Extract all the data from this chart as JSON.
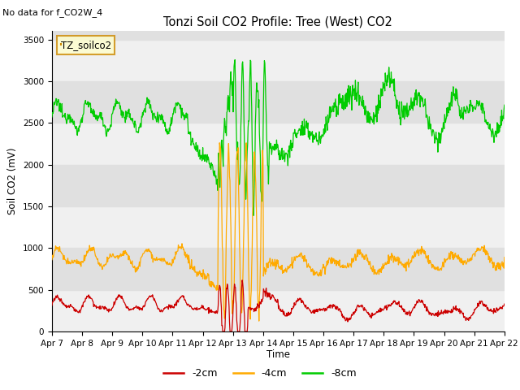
{
  "title": "Tonzi Soil CO2 Profile: Tree (West) CO2",
  "subtitle": "No data for f_CO2W_4",
  "ylabel": "Soil CO2 (mV)",
  "xlabel": "Time",
  "legend_label": "TZ_soilco2",
  "ylim": [
    0,
    3600
  ],
  "yticks": [
    0,
    500,
    1000,
    1500,
    2000,
    2500,
    3000,
    3500
  ],
  "xticklabels": [
    "Apr 7",
    "Apr 8",
    "Apr 9",
    "Apr 10",
    "Apr 11",
    "Apr 12",
    "Apr 13",
    "Apr 14",
    "Apr 15",
    "Apr 16",
    "Apr 17",
    "Apr 18",
    "Apr 19",
    "Apr 20",
    "Apr 21",
    "Apr 22"
  ],
  "colors": {
    "red": "#cc0000",
    "orange": "#ffaa00",
    "green": "#00cc00",
    "band_dark": "#e0e0e0",
    "band_light": "#f0f0f0"
  },
  "legend_items": [
    "-2cm",
    "-4cm",
    "-8cm"
  ],
  "legend_colors": [
    "#cc0000",
    "#ffaa00",
    "#00cc00"
  ]
}
